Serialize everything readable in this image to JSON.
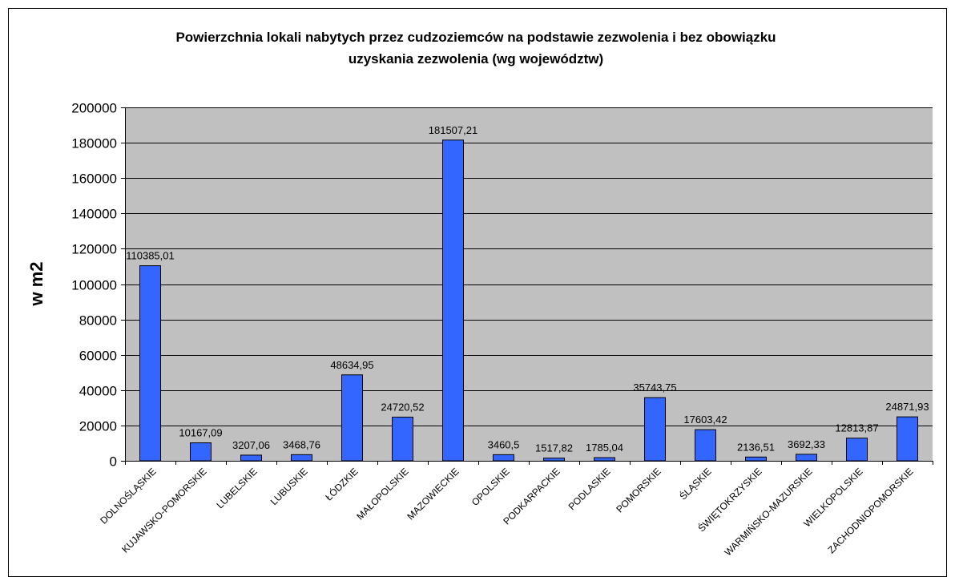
{
  "chart_data": {
    "type": "bar",
    "title_lines": [
      "Powierzchnia lokali nabytych przez cudzoziemców na podstawie zezwolenia i bez obowiązku",
      "uzyskania zezwolenia (wg województw)"
    ],
    "ylabel": "w m2",
    "ylim": [
      0,
      200000
    ],
    "yticks": [
      0,
      20000,
      40000,
      60000,
      80000,
      100000,
      120000,
      140000,
      160000,
      180000,
      200000
    ],
    "grid": true,
    "legend": "none",
    "categories": [
      "DOLNOŚLĄSKIE",
      "KUJAWSKO-POMORSKIE",
      "LUBELSKIE",
      "LUBUSKIE",
      "ŁÓDZKIE",
      "MAŁOPOLSKIE",
      "MAZOWIECKIE",
      "OPOLSKIE",
      "PODKARPACKIE",
      "PODLASKIE",
      "POMORSKIE",
      "ŚLĄSKIE",
      "ŚWIĘTOKRZYSKIE",
      "WARMIŃSKO-MAZURSKIE",
      "WIELKOPOLSKIE",
      "ZACHODNIOPOMORSKIE"
    ],
    "values": [
      110385.01,
      10167.09,
      3207.06,
      3468.76,
      48634.95,
      24720.52,
      181507.21,
      3460.5,
      1517.82,
      1785.04,
      35743.75,
      17603.42,
      2136.51,
      3692.33,
      12813.87,
      24871.93
    ],
    "value_labels": [
      "110385,01",
      "10167,09",
      "3207,06",
      "3468,76",
      "48634,95",
      "24720,52",
      "181507,21",
      "3460,5",
      "1517,82",
      "1785,04",
      "35743,75",
      "17603,42",
      "2136,51",
      "3692,33",
      "12813,87",
      "24871,93"
    ],
    "colors": {
      "bar_fill": "#3366ff",
      "bar_stroke": "#000000",
      "plot_bg": "#c0c0c0",
      "gridline": "#000000",
      "background": "#ffffff",
      "frame": "#000000"
    }
  }
}
